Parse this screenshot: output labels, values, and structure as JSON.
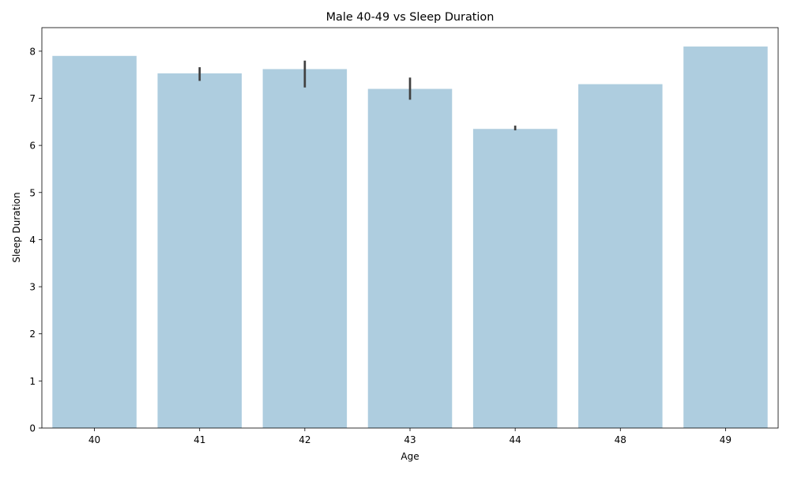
{
  "chart_data": {
    "type": "bar",
    "title": "Male 40-49 vs Sleep Duration",
    "xlabel": "Age",
    "ylabel": "Sleep Duration",
    "categories": [
      "40",
      "41",
      "42",
      "43",
      "44",
      "48",
      "49"
    ],
    "values": [
      7.9,
      7.53,
      7.62,
      7.2,
      6.35,
      7.3,
      8.1
    ],
    "error_low": [
      null,
      7.37,
      7.23,
      6.97,
      6.32,
      null,
      null
    ],
    "error_high": [
      null,
      7.66,
      7.8,
      7.44,
      6.42,
      null,
      null
    ],
    "ylim": [
      0,
      8.5
    ],
    "yticks": [
      "0",
      "1",
      "2",
      "3",
      "4",
      "5",
      "6",
      "7",
      "8"
    ],
    "grid": false,
    "colors": {
      "bar": "#aecddf",
      "errorbar": "#404040",
      "axis": "#000000"
    }
  }
}
